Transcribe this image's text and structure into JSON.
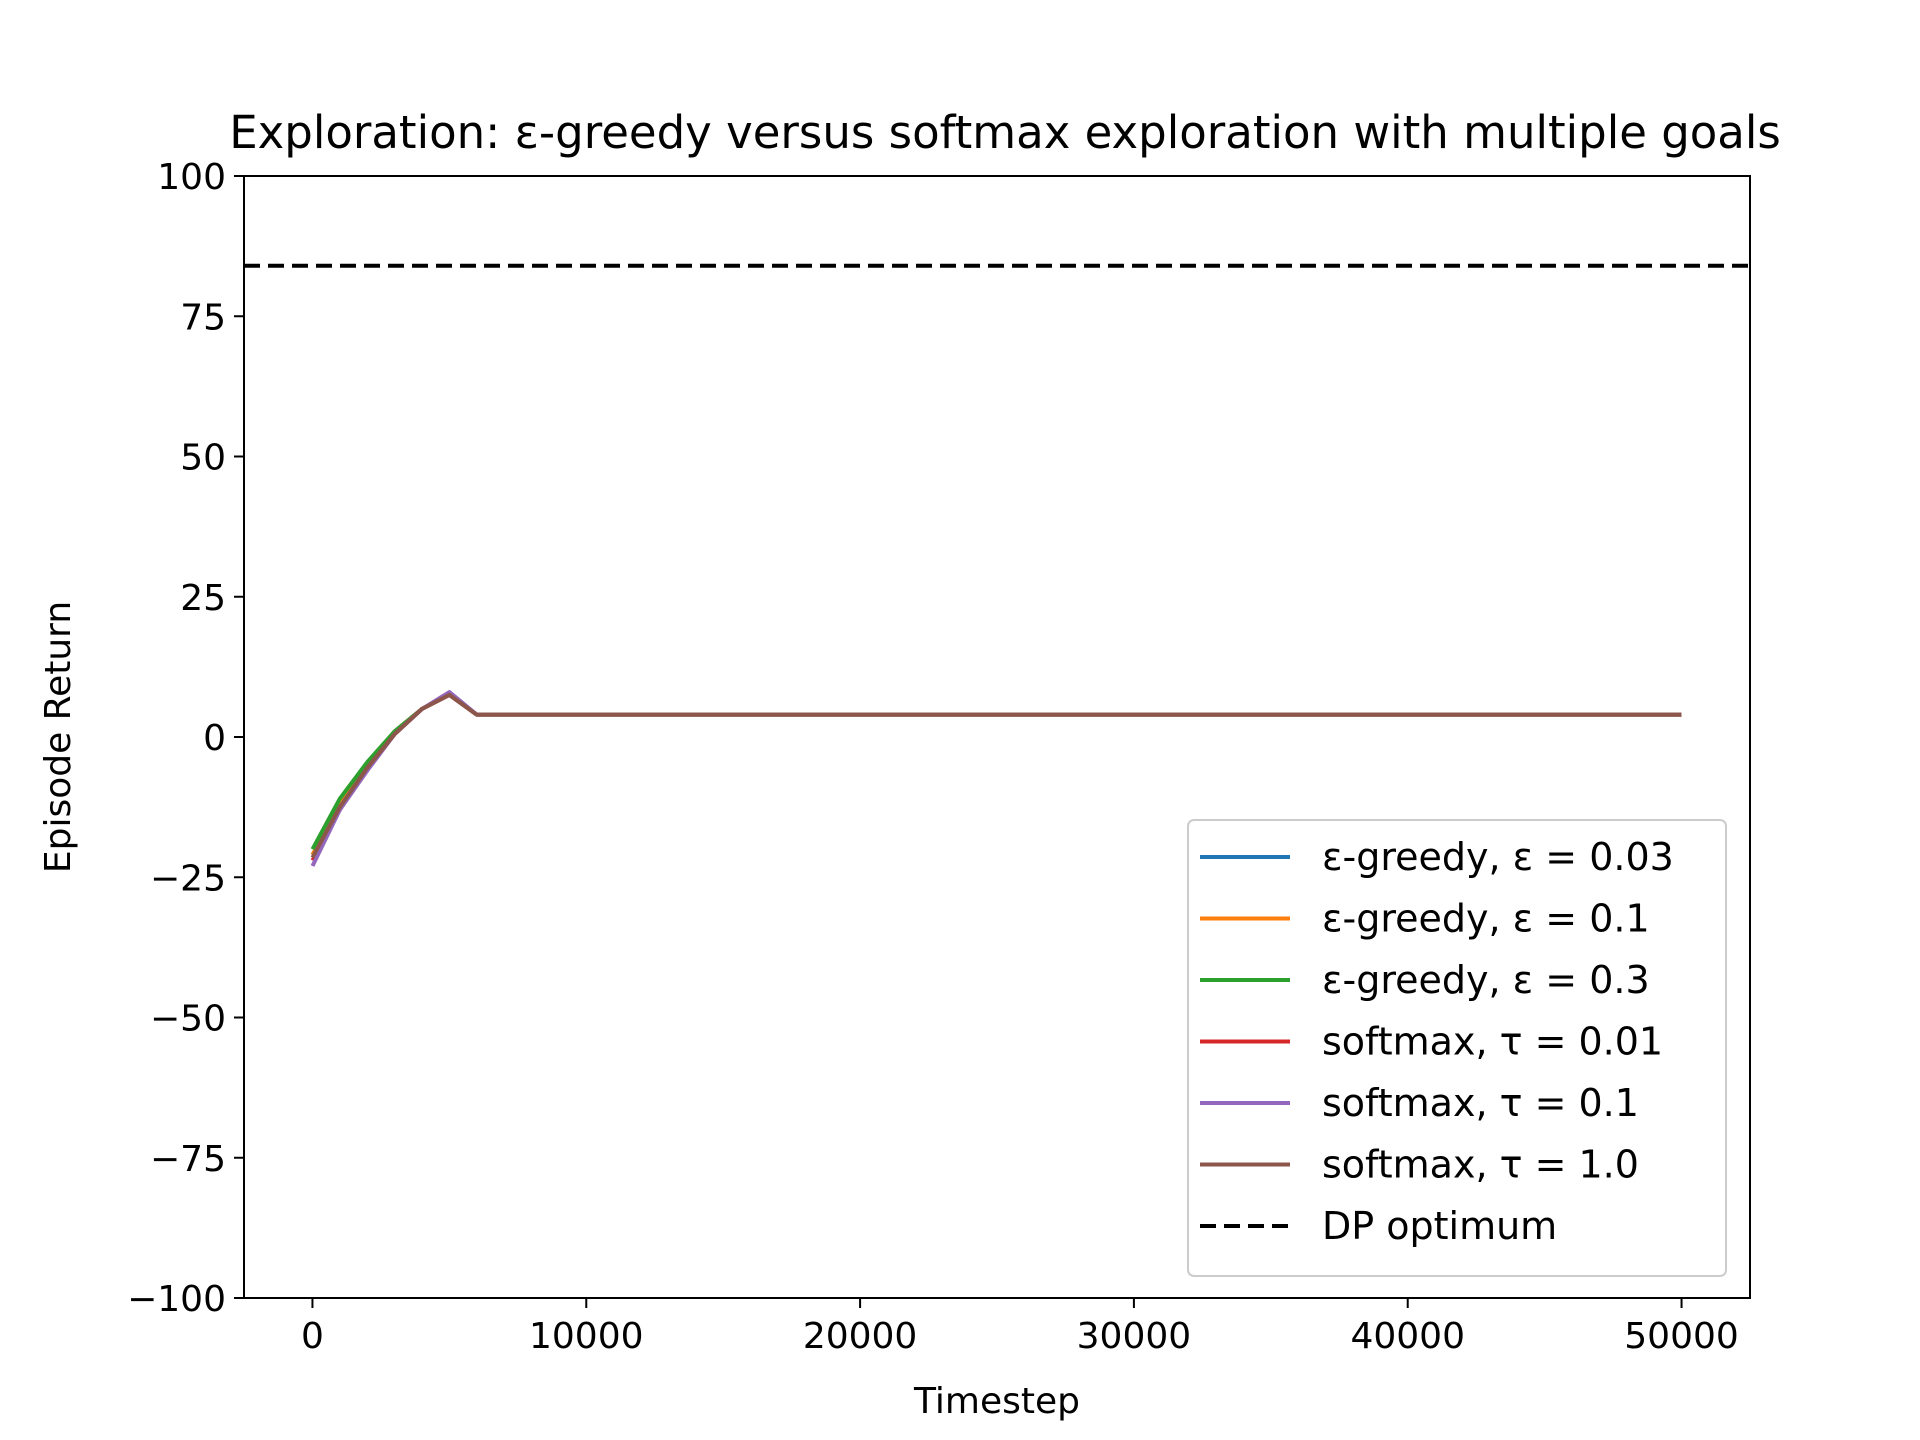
{
  "chart_data": {
    "type": "line",
    "title": "Exploration: ε-greedy versus softmax exploration with multiple goals",
    "xlabel": "Timestep",
    "ylabel": "Episode Return",
    "xlim": [
      -2500,
      52500
    ],
    "ylim": [
      -100,
      100
    ],
    "xticks": [
      0,
      10000,
      20000,
      30000,
      40000,
      50000
    ],
    "xtick_labels": [
      "0",
      "10000",
      "20000",
      "30000",
      "40000",
      "50000"
    ],
    "yticks": [
      -100,
      -75,
      -50,
      -25,
      0,
      25,
      50,
      75,
      100
    ],
    "ytick_labels": [
      "−100",
      "−75",
      "−50",
      "−25",
      "0",
      "25",
      "50",
      "75",
      "100"
    ],
    "grid": false,
    "legend_position": "lower-right",
    "x": [
      0,
      1000,
      2000,
      3000,
      4000,
      5000,
      6000,
      10000,
      20000,
      30000,
      40000,
      50000
    ],
    "series": [
      {
        "name": "ε-greedy, ε = 0.03",
        "color": "#1f77b4",
        "values": [
          -21,
          -12,
          -5,
          1,
          5,
          7.5,
          4,
          4,
          4,
          4,
          4,
          4
        ]
      },
      {
        "name": "ε-greedy, ε = 0.1",
        "color": "#ff7f0e",
        "values": [
          -21,
          -12,
          -5,
          1,
          5,
          7.5,
          4,
          4,
          4,
          4,
          4,
          4
        ]
      },
      {
        "name": "ε-greedy, ε = 0.3",
        "color": "#2ca02c",
        "values": [
          -20,
          -11,
          -4.5,
          1,
          5,
          7.5,
          4,
          4,
          4,
          4,
          4,
          4
        ]
      },
      {
        "name": "softmax, τ = 0.01",
        "color": "#d62728",
        "values": [
          -22,
          -13,
          -5.5,
          0.5,
          5,
          7.5,
          4,
          4,
          4,
          4,
          4,
          4
        ]
      },
      {
        "name": "softmax, τ = 0.1",
        "color": "#9467bd",
        "values": [
          -23,
          -13,
          -6,
          0.5,
          5,
          8,
          4,
          4,
          4,
          4,
          4,
          4
        ]
      },
      {
        "name": "softmax, τ = 1.0",
        "color": "#8c564b",
        "values": [
          -21.5,
          -12.5,
          -5.5,
          0.5,
          5,
          7.5,
          4,
          4,
          4,
          4,
          4,
          4
        ]
      }
    ],
    "reference_line": {
      "name": "DP optimum",
      "color": "#000000",
      "style": "dashed",
      "value": 84
    }
  }
}
